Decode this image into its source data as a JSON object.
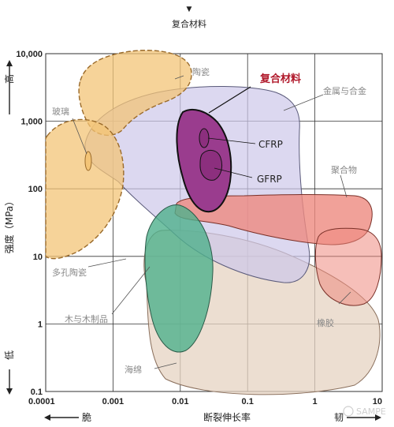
{
  "header": {
    "marker": "▼",
    "title": "复合材料"
  },
  "chart_data": {
    "type": "region_map",
    "x_axis": {
      "scale": "log",
      "range": [
        0.0001,
        10
      ],
      "ticks": [
        "0.0001",
        "0.001",
        "0.01",
        "0.1",
        "1",
        "10"
      ],
      "label": "断裂伸长率",
      "low_label": "脆",
      "high_label": "韧"
    },
    "y_axis": {
      "scale": "log",
      "range": [
        0.1,
        10000
      ],
      "ticks": [
        "0.1",
        "1",
        "10",
        "100",
        "1,000",
        "10,000"
      ],
      "label": "强度（MPa）",
      "high_label": "高",
      "low_label": "低"
    },
    "grid": true,
    "regions": [
      {
        "id": "ceramic",
        "label": "陶瓷",
        "color": "#f3c477"
      },
      {
        "id": "glass",
        "label": "玻璃",
        "color": "#f3c477"
      },
      {
        "id": "porous-ceramic",
        "label": "多孔陶瓷",
        "color": "#f3c477"
      },
      {
        "id": "metal-alloy",
        "label": "金属与合金",
        "color": "#cdc8ea"
      },
      {
        "id": "polymer",
        "label": "聚合物",
        "color": "#ee8a80"
      },
      {
        "id": "rubber",
        "label": "橡胶",
        "color": "#ee8a80"
      },
      {
        "id": "wood",
        "label": "木与木制品",
        "color": "#4fb08c"
      },
      {
        "id": "foam",
        "label": "海绵",
        "color": "#e5d3c2"
      },
      {
        "id": "composite",
        "label": "复合材料",
        "color": "#9a3c8e"
      },
      {
        "id": "cfrp",
        "label": "CFRP",
        "color": "#8c2f7e"
      },
      {
        "id": "gfrp",
        "label": "GFRP",
        "color": "#8c2f7e"
      }
    ]
  },
  "watermark": "SAMPE"
}
